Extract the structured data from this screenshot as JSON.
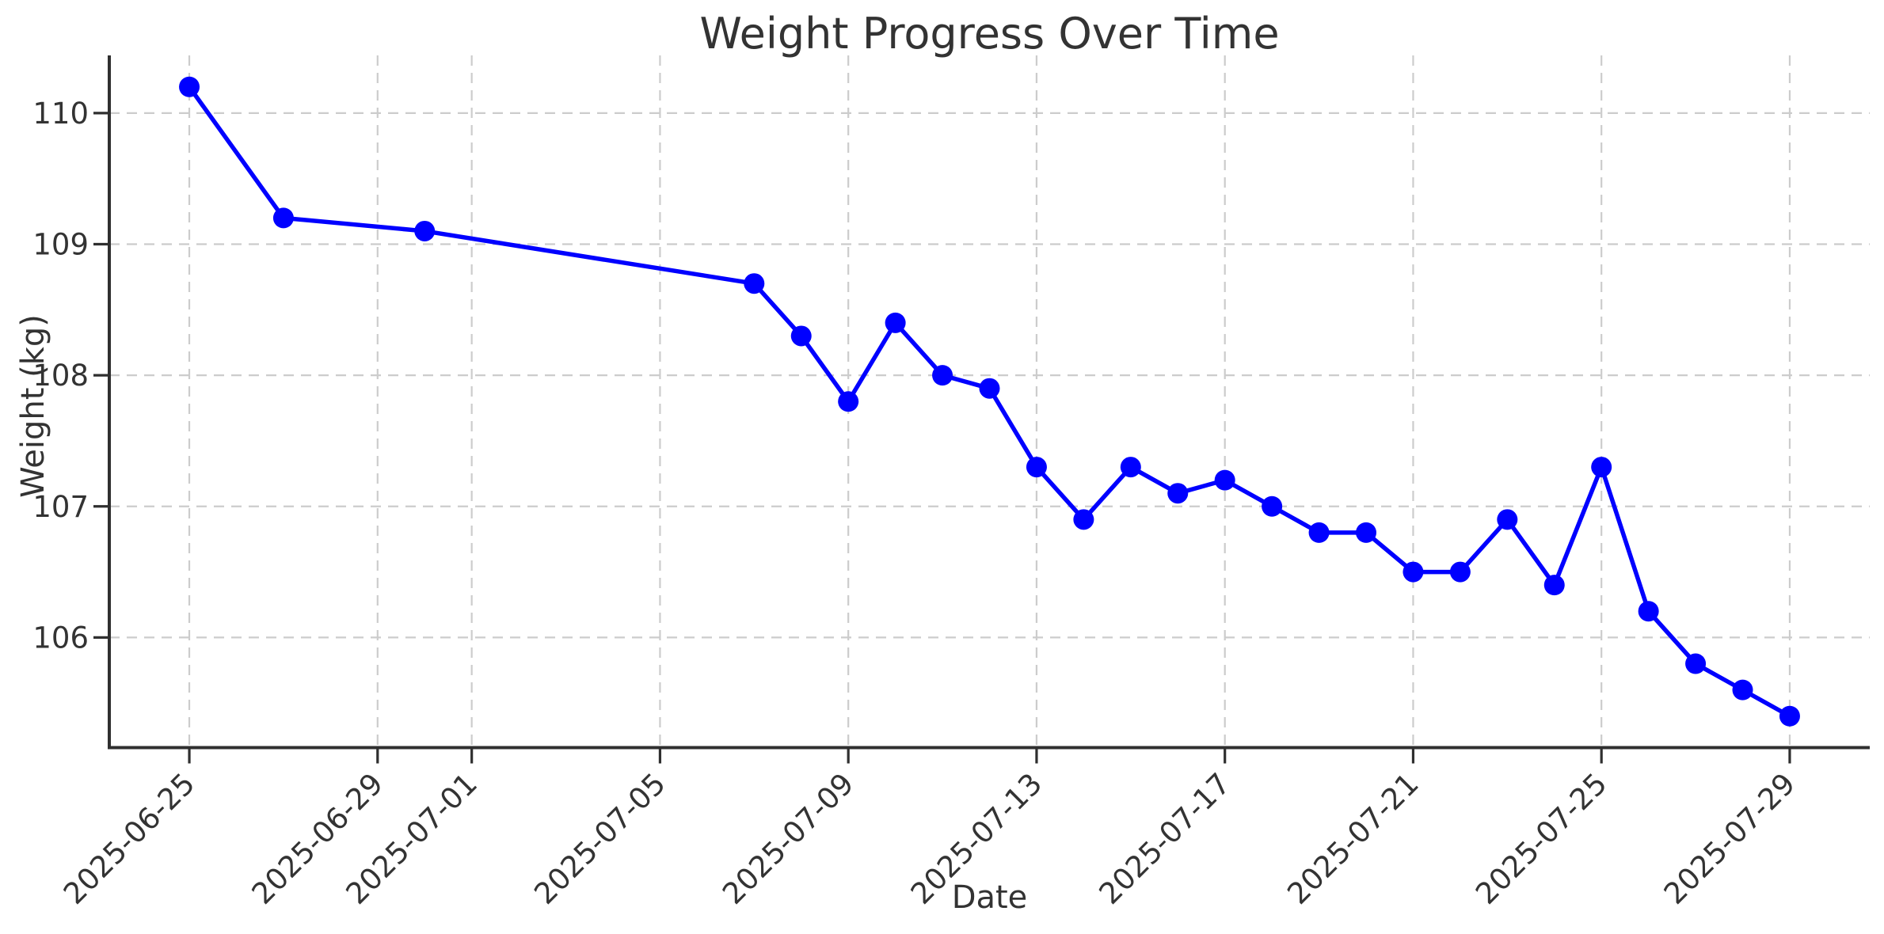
{
  "chart_data": {
    "type": "line",
    "title": "Weight Progress Over Time",
    "xlabel": "Date",
    "ylabel": "Weight (kg)",
    "grid": true,
    "grid_linestyle": "dashed",
    "legend_position": "none",
    "marker": "circle",
    "line_color": "#0000ff",
    "x_tick_labels": [
      "2025-06-25",
      "2025-06-29",
      "2025-07-01",
      "2025-07-05",
      "2025-07-09",
      "2025-07-13",
      "2025-07-17",
      "2025-07-21",
      "2025-07-25",
      "2025-07-29"
    ],
    "y_ticks": [
      106,
      107,
      108,
      109,
      110
    ],
    "ylim": [
      105.16,
      110.44
    ],
    "xlim_days_from_first_point": [
      -1.7,
      35.7
    ],
    "series": [
      {
        "name": "Weight",
        "color": "#0000ff",
        "dates": [
          "2025-06-25",
          "2025-06-27",
          "2025-06-30",
          "2025-07-07",
          "2025-07-08",
          "2025-07-09",
          "2025-07-10",
          "2025-07-11",
          "2025-07-12",
          "2025-07-13",
          "2025-07-14",
          "2025-07-15",
          "2025-07-16",
          "2025-07-17",
          "2025-07-18",
          "2025-07-19",
          "2025-07-20",
          "2025-07-21",
          "2025-07-22",
          "2025-07-23",
          "2025-07-24",
          "2025-07-25",
          "2025-07-26",
          "2025-07-27",
          "2025-07-28",
          "2025-07-29"
        ],
        "values": [
          110.2,
          109.2,
          109.1,
          108.7,
          108.3,
          107.8,
          108.4,
          108.0,
          107.9,
          107.3,
          106.9,
          107.3,
          107.1,
          107.2,
          107.0,
          106.8,
          106.8,
          106.5,
          106.5,
          106.9,
          106.4,
          107.3,
          106.2,
          105.8,
          105.6,
          105.4
        ]
      }
    ]
  },
  "colors": {
    "line": "#0000ff",
    "grid": "#cccccc",
    "spine": "#2f2f2f",
    "tick": "#2f2f2f",
    "text": "#333333",
    "background": "#ffffff"
  }
}
